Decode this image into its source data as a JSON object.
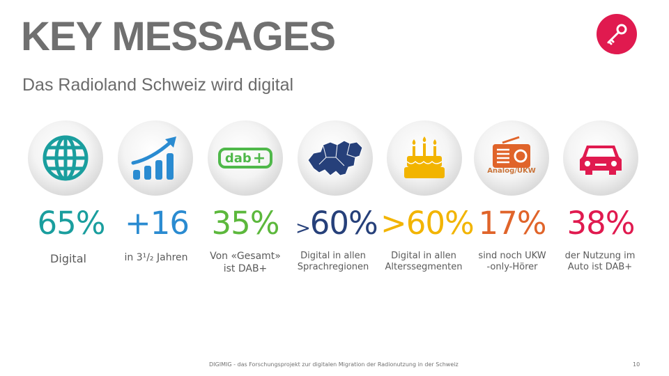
{
  "header": {
    "title": "KEY MESSAGES",
    "subtitle": "Das Radioland Schweiz wird digital"
  },
  "icons": {
    "key": "key-icon",
    "colors": {
      "teal": "#1a9e9e",
      "blue": "#2a8bd1",
      "green": "#5cb83c",
      "navy": "#26407a",
      "yellow": "#f2b400",
      "orange": "#e0642a",
      "red": "#e01a4f"
    }
  },
  "stats": [
    {
      "value": "65%",
      "caption_line1": "Digital",
      "caption_line2": "",
      "icon": "globe-icon",
      "color": "#1a9e9e"
    },
    {
      "value": "+16",
      "caption_line1": "in 3¹/₂ Jahren",
      "caption_line2": "",
      "icon": "growth-chart-icon",
      "color": "#2a8bd1"
    },
    {
      "value": "35%",
      "caption_line1": "Von «Gesamt»",
      "caption_line2": "ist DAB+",
      "icon": "dab-logo-icon",
      "color": "#5cb83c"
    },
    {
      "value_prefix": ">",
      "value": "60%",
      "caption_line1": "Digital in allen",
      "caption_line2": "Sprachregionen",
      "icon": "switzerland-map-icon",
      "color": "#26407a"
    },
    {
      "value": ">60%",
      "caption_line1": "Digital in allen",
      "caption_line2": "Alterssegmenten",
      "icon": "birthday-cake-icon",
      "color": "#f2b400"
    },
    {
      "value": "17%",
      "caption_line1": "sind noch UKW",
      "caption_line2": "-only-Hörer",
      "icon": "radio-icon",
      "color": "#e0642a",
      "icon_label": "Analog/UKW"
    },
    {
      "value": "38%",
      "caption_line1": "der Nutzung im",
      "caption_line2": "Auto ist DAB+",
      "icon": "car-icon",
      "color": "#e01a4f"
    }
  ],
  "dab_text": "dab",
  "footer": {
    "text": "DIGIMIG - das Forschungsprojekt zur digitalen Migration der Radionutzung in der Schweiz",
    "page_number": "10"
  }
}
